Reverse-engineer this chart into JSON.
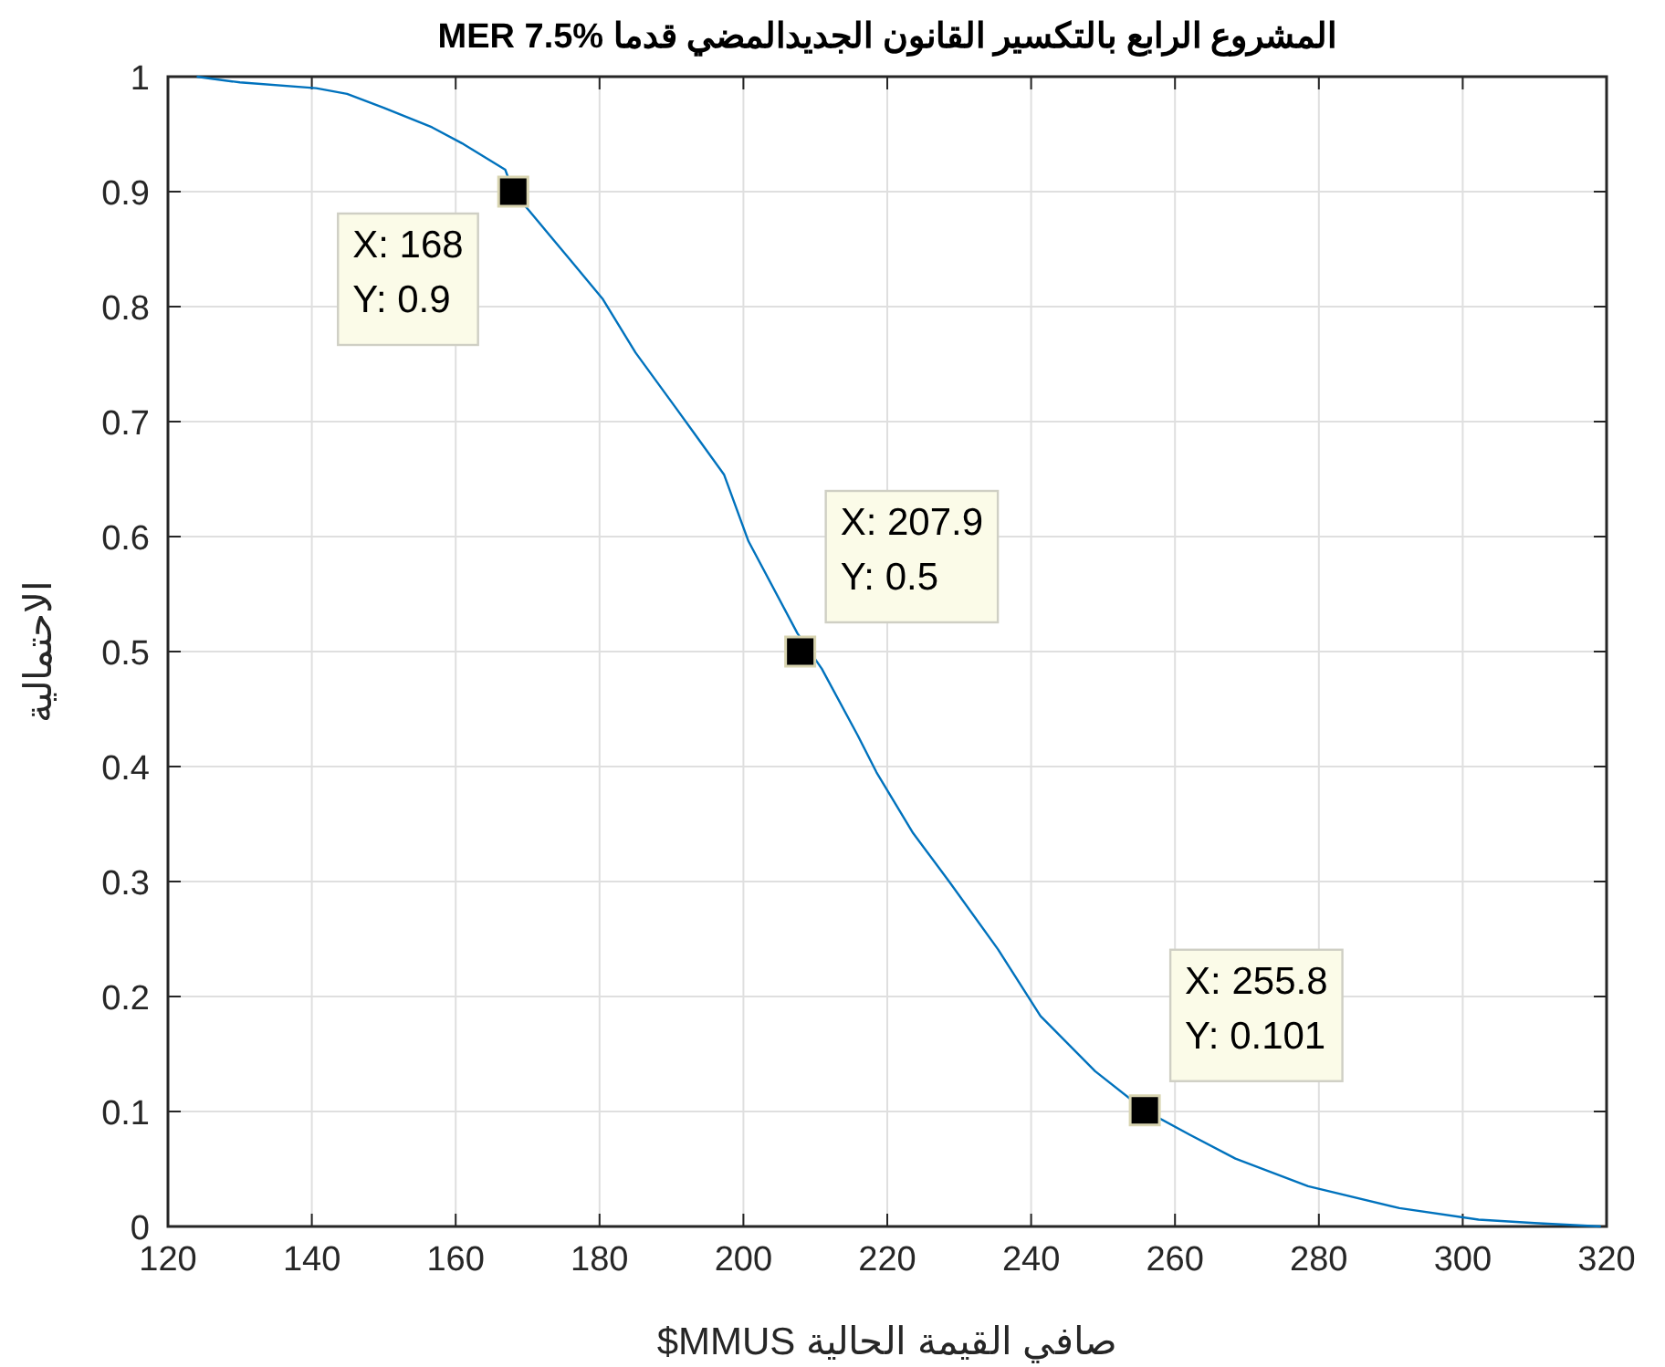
{
  "chart_data": {
    "type": "line",
    "title": "المشروع الرابع بالتكسير القانون الجديدالمضي قدما MER 7.5%",
    "xlabel": "صافي القيمة الحالية MMUS$",
    "ylabel": "الاحتمالية",
    "series": [
      {
        "color": "#0072bd",
        "x": [
          124,
          126.3,
          130,
          140.6,
          144.9,
          150,
          156.7,
          160.9,
          166.9,
          168,
          172,
          176,
          180.4,
          185,
          190.6,
          197.3,
          200.7,
          207.5,
          210.9,
          215.9,
          218.5,
          223.6,
          228.6,
          235.4,
          241.3,
          248.9,
          255.8,
          262,
          268.4,
          278.5,
          291.2,
          302.2,
          310,
          319.2
        ],
        "values": [
          1.0,
          0.998,
          0.995,
          0.99,
          0.985,
          0.973,
          0.956,
          0.942,
          0.919,
          0.9,
          0.87,
          0.84,
          0.807,
          0.76,
          0.712,
          0.654,
          0.596,
          0.516,
          0.485,
          0.427,
          0.395,
          0.342,
          0.3,
          0.241,
          0.183,
          0.135,
          0.101,
          0.08,
          0.059,
          0.035,
          0.016,
          0.006,
          0.003,
          0.0
        ]
      },
      {
        "type": "scatter",
        "marker": "square",
        "color": "#000000",
        "x": [
          168,
          207.9,
          255.8
        ],
        "values": [
          0.9,
          0.5,
          0.101
        ]
      }
    ],
    "annotations": [
      {
        "text": "X: 168\nY: 0.9",
        "x": 168,
        "y": 0.9
      },
      {
        "text": "X: 207.9\nY: 0.5",
        "x": 207.9,
        "y": 0.5
      },
      {
        "text": "X: 255.8\nY: 0.101",
        "x": 255.8,
        "y": 0.101
      }
    ],
    "xlim": [
      120,
      320
    ],
    "xticks": [
      120,
      140,
      160,
      180,
      200,
      220,
      240,
      260,
      280,
      300,
      320
    ],
    "ylim": [
      0,
      1
    ],
    "yticks": [
      0,
      0.1,
      0.2,
      0.3,
      0.4,
      0.5,
      0.6,
      0.7,
      0.8,
      0.9,
      1
    ],
    "grid": true
  }
}
